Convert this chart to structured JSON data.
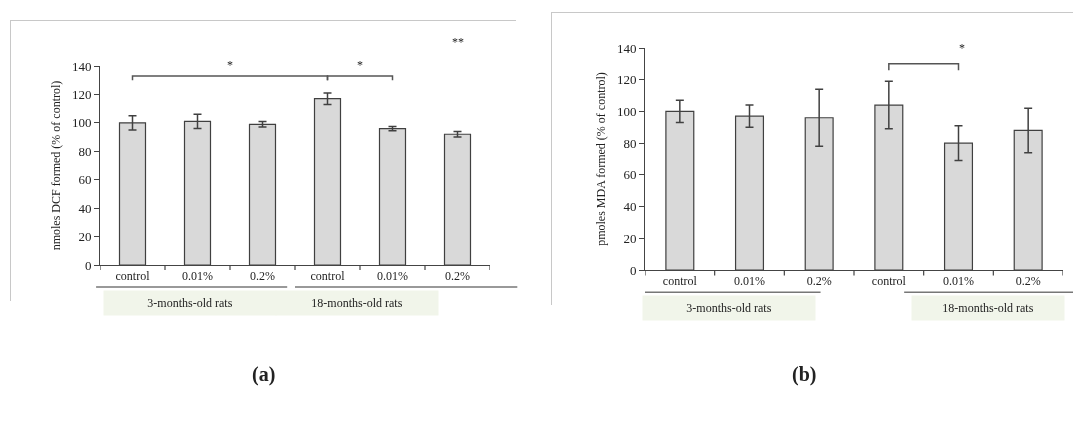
{
  "chart_data": [
    {
      "type": "bar",
      "ylabel": "nmoles DCF formed (% of control)",
      "categories": [
        "control",
        "0.01%",
        "0.2%",
        "control",
        "0.01%",
        "0.2%"
      ],
      "values": [
        100,
        101,
        99,
        117,
        96,
        92
      ],
      "errors": [
        5,
        5,
        2,
        4,
        1.5,
        2
      ],
      "color": "#d9d9d9",
      "ylim": [
        0,
        140
      ],
      "yticks": [
        0,
        20,
        40,
        60,
        80,
        100,
        120,
        140
      ],
      "annotations": [
        "*",
        "*",
        "**",
        "3-months-old rats",
        "18-months-old rats",
        "(a)"
      ]
    },
    {
      "type": "bar",
      "ylabel": "pmoles MDA formed (% of control)",
      "categories": [
        "control",
        "0.01%",
        "0.2%",
        "control",
        "0.01%",
        "0.2%"
      ],
      "values": [
        100,
        97,
        96,
        104,
        80,
        88
      ],
      "errors": [
        7,
        7,
        18,
        15,
        11,
        14
      ],
      "color": "#d9d9d9",
      "ylim": [
        0,
        140
      ],
      "yticks": [
        0,
        20,
        40,
        60,
        80,
        100,
        120,
        140
      ],
      "annotations": [
        "*",
        "3-months-old rats",
        "18-months-old rats",
        "(b)"
      ]
    }
  ]
}
